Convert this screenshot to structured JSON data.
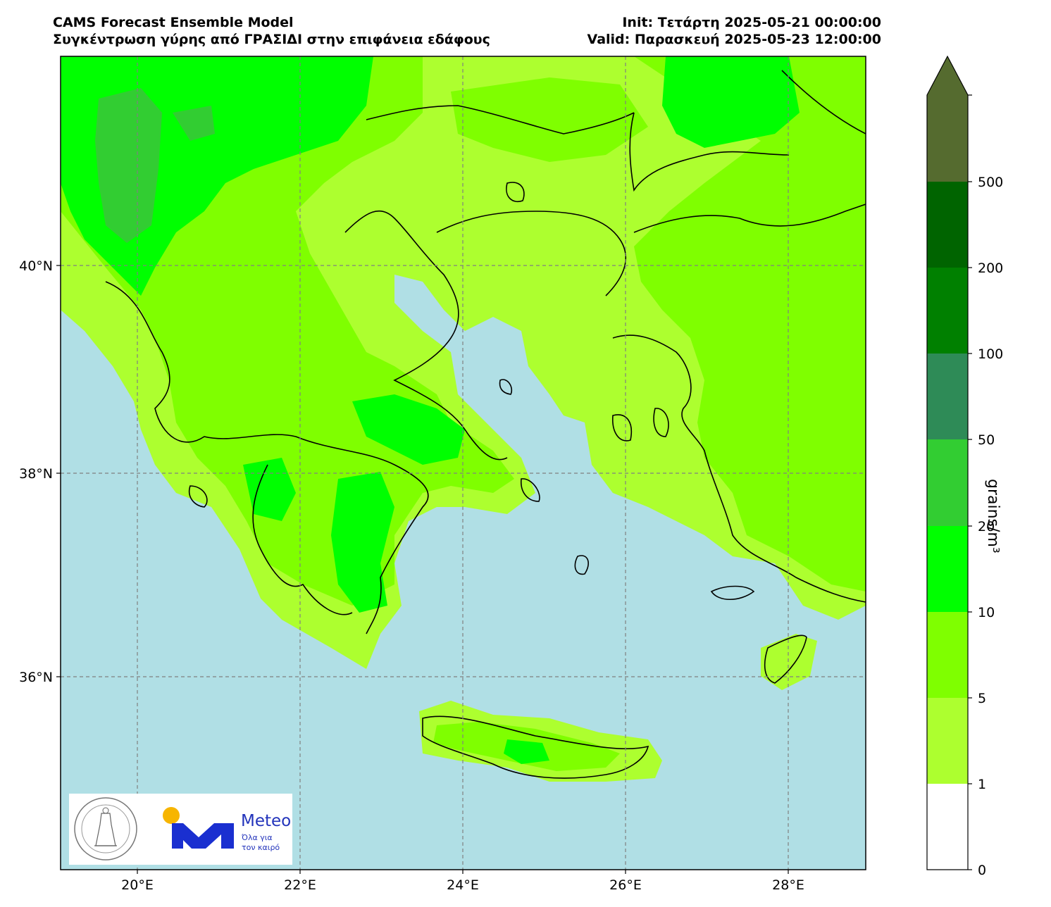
{
  "header": {
    "model": "CAMS Forecast Ensemble Model",
    "subtitle": "Συγκέντρωση γύρης από ΓΡΑΣΙΔΙ στην επιφάνεια εδάφους",
    "init": "Init: Τετάρτη 2025-05-21 00:00:00",
    "valid": "Valid: Παρασκευή 2025-05-23 12:00:00"
  },
  "map": {
    "lon_ticks": [
      "20°E",
      "22°E",
      "24°E",
      "26°E",
      "28°E"
    ],
    "lat_ticks": [
      "40°N",
      "38°N",
      "36°N"
    ],
    "sea_color": "#b0dfe5",
    "land_fill_low": "#adff2f",
    "gridline_style": "dashed-gray"
  },
  "colorbar": {
    "unit": "grains/m³",
    "levels": [
      "0",
      "1",
      "5",
      "10",
      "20",
      "50",
      "100",
      "200",
      "500"
    ],
    "colors": [
      "#ffffff",
      "#adff2f",
      "#7fff00",
      "#00ff00",
      "#32cd32",
      "#2e8b57",
      "#008000",
      "#006400",
      "#556b2f"
    ],
    "extend": "max"
  },
  "logos": {
    "seal_text": "ΕΘΝΙΚΟΝ ΑΣΤΕΡΟΣΚΟΠΕΙΟΝ ΑΘΗΝΩΝ · NATIONAL OBSERVATORY OF ATHENS",
    "meteo_name": "Meteo",
    "meteo_tagline_1": "Όλα για",
    "meteo_tagline_2": "τον καιρό",
    "meteo_sun_color": "#f7b500",
    "meteo_blue": "#1a2fd0"
  }
}
